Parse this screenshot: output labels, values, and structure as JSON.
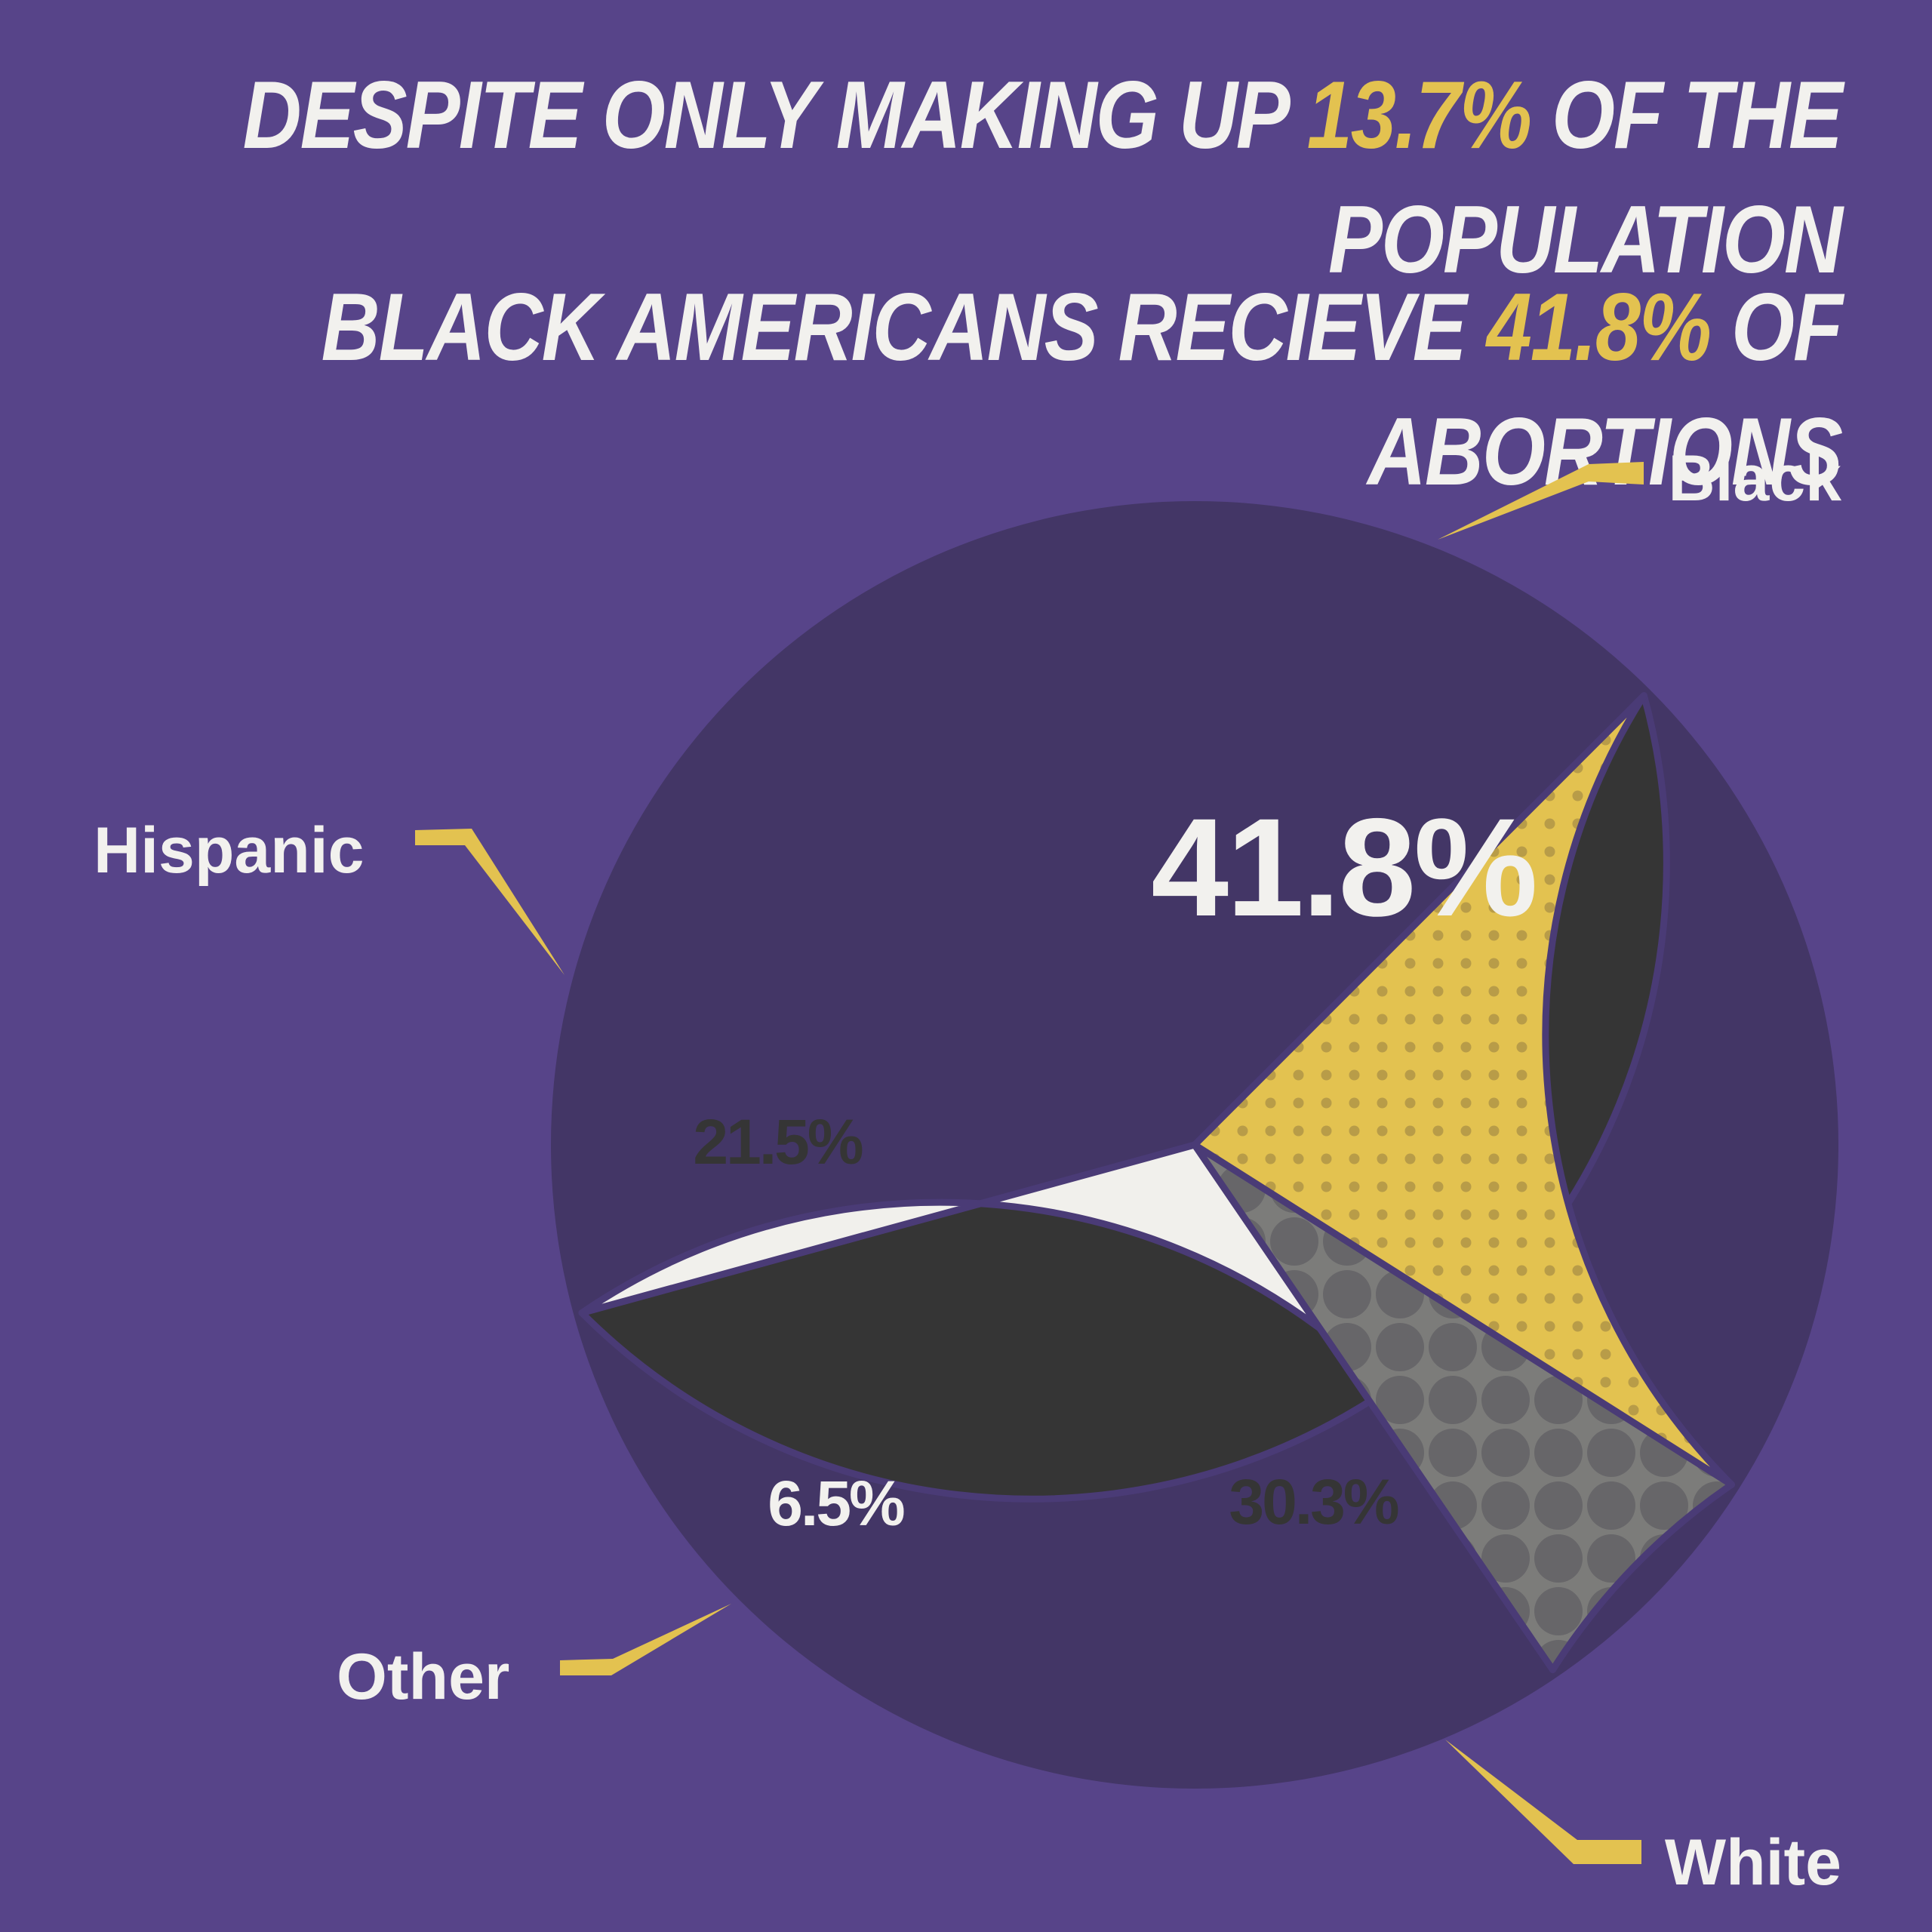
{
  "headline": {
    "line1": {
      "pre": "DESPITE  ONLY MAKING UP ",
      "highlight": "13.7%",
      "post": " OF THE POPULATION"
    },
    "line2": {
      "pre": "BLACK AMERICANS RECIEVE ",
      "highlight": "41.8%",
      "post": " OF ABORTIONS"
    }
  },
  "colors": {
    "background": "#574489",
    "highlight": "#e3c250",
    "black_slice": "#353535",
    "white_slice": "#f1f0ec",
    "hispanic_slice": "#e3c250",
    "other_slice": "#7c7c7a"
  },
  "chart_data": {
    "type": "pie",
    "title": "",
    "start_angle_deg": 45,
    "slices": [
      {
        "label": "Black",
        "value": 41.8,
        "value_label": "41.8%",
        "color": "#353535",
        "pattern": "none",
        "text_color": "#f2f1ee"
      },
      {
        "label": "White",
        "value": 30.3,
        "value_label": "30.3%",
        "color": "#f1f0ec",
        "pattern": "none",
        "text_color": "#353535"
      },
      {
        "label": "Other",
        "value": 6.5,
        "value_label": "6.5%",
        "color": "#7c7c7a",
        "pattern": "circles",
        "text_color": "#f2f1ee"
      },
      {
        "label": "Hispanic",
        "value": 21.5,
        "value_label": "21.5%",
        "color": "#e3c250",
        "pattern": "dots",
        "text_color": "#353535"
      }
    ]
  }
}
